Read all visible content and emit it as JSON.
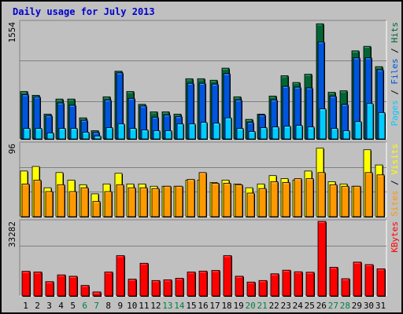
{
  "title": "Daily usage for July 2013",
  "colors": {
    "background": "#c0c0c0",
    "panel": "#c0c0c0",
    "title": "#0000cc",
    "pages": "#00ccff",
    "files": "#0055dd",
    "hits": "#006633",
    "visits": "#ffff00",
    "sites": "#ff9900",
    "kbytes": "#ff0000",
    "weekday_label": "#000000",
    "weekend_label": "#008040"
  },
  "chart_data": [
    {
      "type": "bar",
      "title": "Daily usage for July 2013",
      "panel": "top",
      "scale_max_label": "1554",
      "ylim": [
        0,
        1554
      ],
      "right_label_parts": [
        "Pages",
        "Files",
        "Hits"
      ],
      "categories": [
        "1",
        "2",
        "3",
        "4",
        "5",
        "6",
        "7",
        "8",
        "9",
        "10",
        "11",
        "12",
        "13",
        "14",
        "15",
        "16",
        "17",
        "18",
        "19",
        "20",
        "21",
        "22",
        "23",
        "24",
        "25",
        "26",
        "27",
        "28",
        "29",
        "30",
        "31"
      ],
      "series": [
        {
          "name": "Hits",
          "values": [
            630,
            580,
            330,
            530,
            530,
            280,
            110,
            560,
            900,
            630,
            460,
            360,
            360,
            330,
            800,
            800,
            780,
            940,
            560,
            260,
            330,
            570,
            840,
            750,
            860,
            1530,
            620,
            640,
            1170,
            1230,
            960
          ]
        },
        {
          "name": "Files",
          "values": [
            590,
            560,
            310,
            480,
            450,
            250,
            90,
            520,
            880,
            540,
            440,
            290,
            320,
            300,
            740,
            740,
            730,
            870,
            520,
            220,
            320,
            520,
            700,
            690,
            680,
            1290,
            570,
            460,
            1080,
            1080,
            920
          ]
        },
        {
          "name": "Pages",
          "values": [
            140,
            140,
            80,
            140,
            140,
            90,
            40,
            150,
            200,
            140,
            120,
            110,
            110,
            200,
            200,
            220,
            210,
            280,
            140,
            100,
            150,
            160,
            170,
            180,
            160,
            400,
            140,
            110,
            230,
            470,
            350
          ]
        }
      ]
    },
    {
      "type": "bar",
      "panel": "middle",
      "scale_max_label": "96",
      "ylim": [
        0,
        96
      ],
      "right_label_parts": [
        "Sites",
        "Visits"
      ],
      "categories": [
        "1",
        "2",
        "3",
        "4",
        "5",
        "6",
        "7",
        "8",
        "9",
        "10",
        "11",
        "12",
        "13",
        "14",
        "15",
        "16",
        "17",
        "18",
        "19",
        "20",
        "21",
        "22",
        "23",
        "24",
        "25",
        "26",
        "27",
        "28",
        "29",
        "30",
        "31"
      ],
      "series": [
        {
          "name": "Visits",
          "values": [
            60,
            66,
            38,
            58,
            48,
            42,
            30,
            43,
            57,
            43,
            43,
            40,
            40,
            40,
            48,
            48,
            45,
            48,
            43,
            38,
            43,
            54,
            50,
            48,
            60,
            90,
            46,
            43,
            40,
            88,
            68
          ]
        },
        {
          "name": "Sites",
          "values": [
            43,
            48,
            33,
            42,
            33,
            38,
            20,
            33,
            42,
            38,
            38,
            37,
            40,
            40,
            49,
            58,
            44,
            44,
            42,
            31,
            37,
            46,
            45,
            50,
            50,
            58,
            42,
            40,
            40,
            58,
            55
          ]
        }
      ]
    },
    {
      "type": "bar",
      "panel": "bottom",
      "scale_max_label": "33282",
      "ylim": [
        0,
        33282
      ],
      "right_label_parts": [
        "KBytes"
      ],
      "categories": [
        "1",
        "2",
        "3",
        "4",
        "5",
        "6",
        "7",
        "8",
        "9",
        "10",
        "11",
        "12",
        "13",
        "14",
        "15",
        "16",
        "17",
        "18",
        "19",
        "20",
        "21",
        "22",
        "23",
        "24",
        "25",
        "26",
        "27",
        "28",
        "29",
        "30",
        "31"
      ],
      "series": [
        {
          "name": "KBytes",
          "values": [
            11000,
            10700,
            6400,
            9400,
            8800,
            4700,
            1800,
            10700,
            18000,
            7500,
            14600,
            6900,
            7200,
            7900,
            10700,
            11100,
            11400,
            18000,
            8800,
            6200,
            6900,
            9900,
            11500,
            10800,
            10600,
            33282,
            12800,
            7700,
            15100,
            14000,
            12100
          ]
        }
      ]
    }
  ]
}
